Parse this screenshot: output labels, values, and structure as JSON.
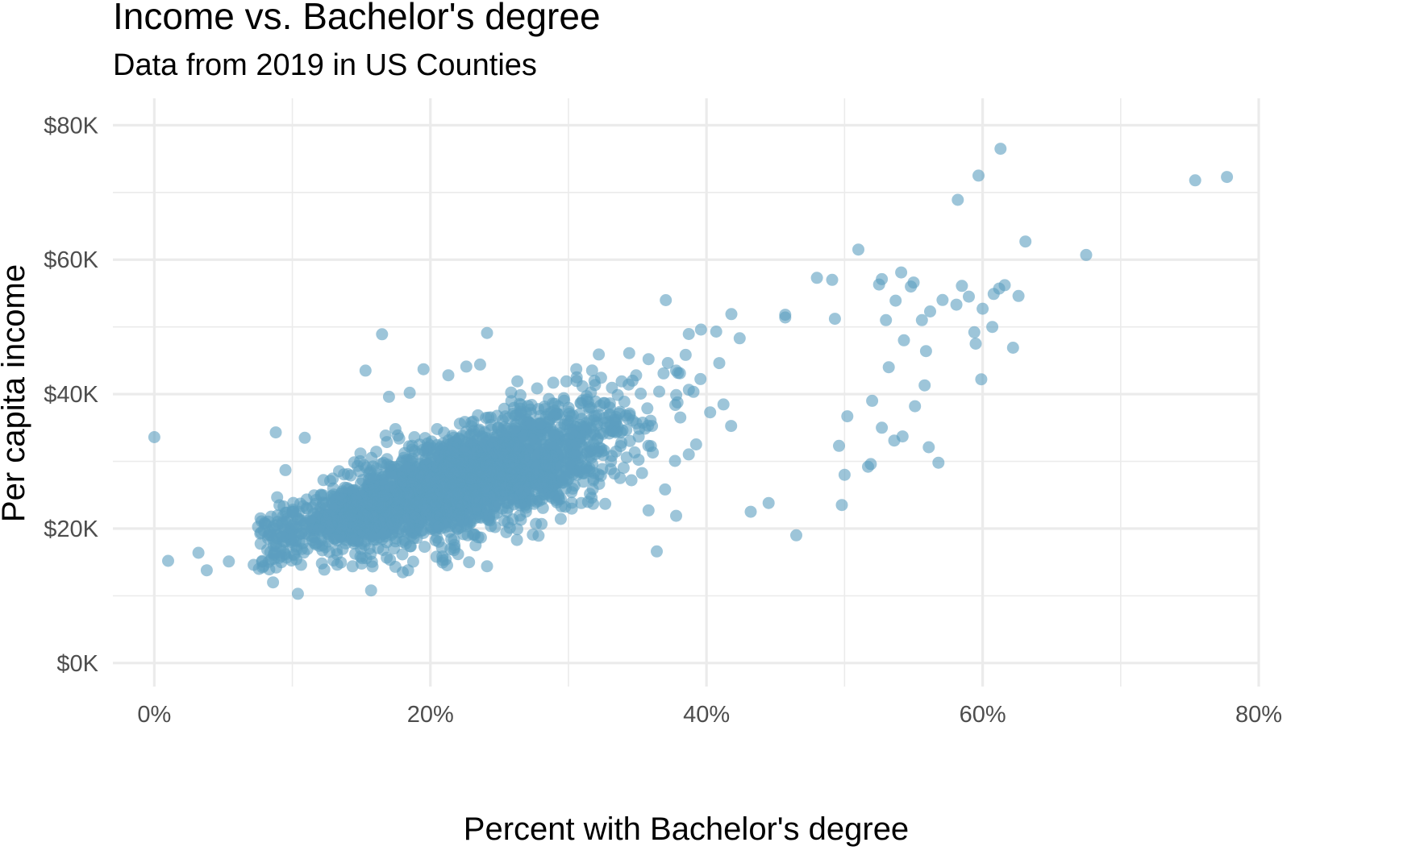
{
  "chart_data": {
    "type": "scatter",
    "title": "Income vs. Bachelor's degree",
    "subtitle": "Data from 2019 in US Counties",
    "xlabel": "Percent with Bachelor's degree",
    "ylabel": "Per capita income",
    "xlim": [
      -0.03,
      0.8
    ],
    "ylim": [
      -3500,
      84000
    ],
    "x_ticks": [
      0,
      0.2,
      0.4,
      0.6,
      0.8
    ],
    "x_tick_labels": [
      "0%",
      "20%",
      "40%",
      "60%",
      "80%"
    ],
    "y_ticks": [
      0,
      20000,
      40000,
      60000,
      80000
    ],
    "y_tick_labels": [
      "$0K",
      "$20K",
      "$40K",
      "$60K",
      "$80K"
    ],
    "grid": true,
    "legend": "none",
    "point_color": "#5b9fc0",
    "point_opacity": 0.6,
    "n_bulk_points": 2750,
    "bulk_trend": {
      "intercept": 13000,
      "slope": 63000
    },
    "points": [
      [
        0.0,
        33600
      ],
      [
        0.01,
        15200
      ],
      [
        0.032,
        16400
      ],
      [
        0.038,
        13800
      ],
      [
        0.054,
        15100
      ],
      [
        0.072,
        14600
      ],
      [
        0.086,
        12000
      ],
      [
        0.104,
        10300
      ],
      [
        0.157,
        10800
      ],
      [
        0.088,
        34300
      ],
      [
        0.109,
        33500
      ],
      [
        0.095,
        28700
      ],
      [
        0.153,
        43500
      ],
      [
        0.165,
        48900
      ],
      [
        0.17,
        39600
      ],
      [
        0.185,
        40200
      ],
      [
        0.195,
        43700
      ],
      [
        0.213,
        42800
      ],
      [
        0.226,
        44100
      ],
      [
        0.236,
        44400
      ],
      [
        0.241,
        49100
      ],
      [
        0.18,
        13500
      ],
      [
        0.211,
        15400
      ],
      [
        0.228,
        15000
      ],
      [
        0.241,
        14400
      ],
      [
        0.263,
        41900
      ],
      [
        0.289,
        41700
      ],
      [
        0.306,
        42500
      ],
      [
        0.322,
        45900
      ],
      [
        0.344,
        46100
      ],
      [
        0.358,
        45200
      ],
      [
        0.378,
        43500
      ],
      [
        0.364,
        16600
      ],
      [
        0.358,
        22700
      ],
      [
        0.378,
        21900
      ],
      [
        0.396,
        49600
      ],
      [
        0.407,
        49300
      ],
      [
        0.418,
        51900
      ],
      [
        0.424,
        48300
      ],
      [
        0.432,
        22500
      ],
      [
        0.445,
        23800
      ],
      [
        0.457,
        51800
      ],
      [
        0.457,
        51400
      ],
      [
        0.465,
        19000
      ],
      [
        0.48,
        57300
      ],
      [
        0.491,
        57000
      ],
      [
        0.493,
        51200
      ],
      [
        0.498,
        23500
      ],
      [
        0.502,
        36700
      ],
      [
        0.5,
        28000
      ],
      [
        0.496,
        32300
      ],
      [
        0.51,
        61500
      ],
      [
        0.52,
        39000
      ],
      [
        0.519,
        29600
      ],
      [
        0.517,
        29200
      ],
      [
        0.525,
        56300
      ],
      [
        0.527,
        57100
      ],
      [
        0.53,
        51000
      ],
      [
        0.532,
        44000
      ],
      [
        0.527,
        35000
      ],
      [
        0.537,
        53900
      ],
      [
        0.541,
        58100
      ],
      [
        0.543,
        48000
      ],
      [
        0.548,
        56000
      ],
      [
        0.55,
        56600
      ],
      [
        0.551,
        38200
      ],
      [
        0.536,
        33100
      ],
      [
        0.542,
        33700
      ],
      [
        0.556,
        51000
      ],
      [
        0.559,
        46400
      ],
      [
        0.562,
        52300
      ],
      [
        0.558,
        41300
      ],
      [
        0.561,
        32100
      ],
      [
        0.568,
        29800
      ],
      [
        0.571,
        54000
      ],
      [
        0.581,
        53300
      ],
      [
        0.582,
        68900
      ],
      [
        0.585,
        56100
      ],
      [
        0.59,
        54500
      ],
      [
        0.594,
        49200
      ],
      [
        0.595,
        47500
      ],
      [
        0.597,
        72500
      ],
      [
        0.599,
        42200
      ],
      [
        0.6,
        52700
      ],
      [
        0.607,
        50000
      ],
      [
        0.608,
        54900
      ],
      [
        0.612,
        55700
      ],
      [
        0.613,
        76500
      ],
      [
        0.616,
        56200
      ],
      [
        0.622,
        46900
      ],
      [
        0.626,
        54600
      ],
      [
        0.631,
        62700
      ],
      [
        0.675,
        60700
      ],
      [
        0.754,
        71800
      ],
      [
        0.777,
        72300
      ]
    ]
  }
}
